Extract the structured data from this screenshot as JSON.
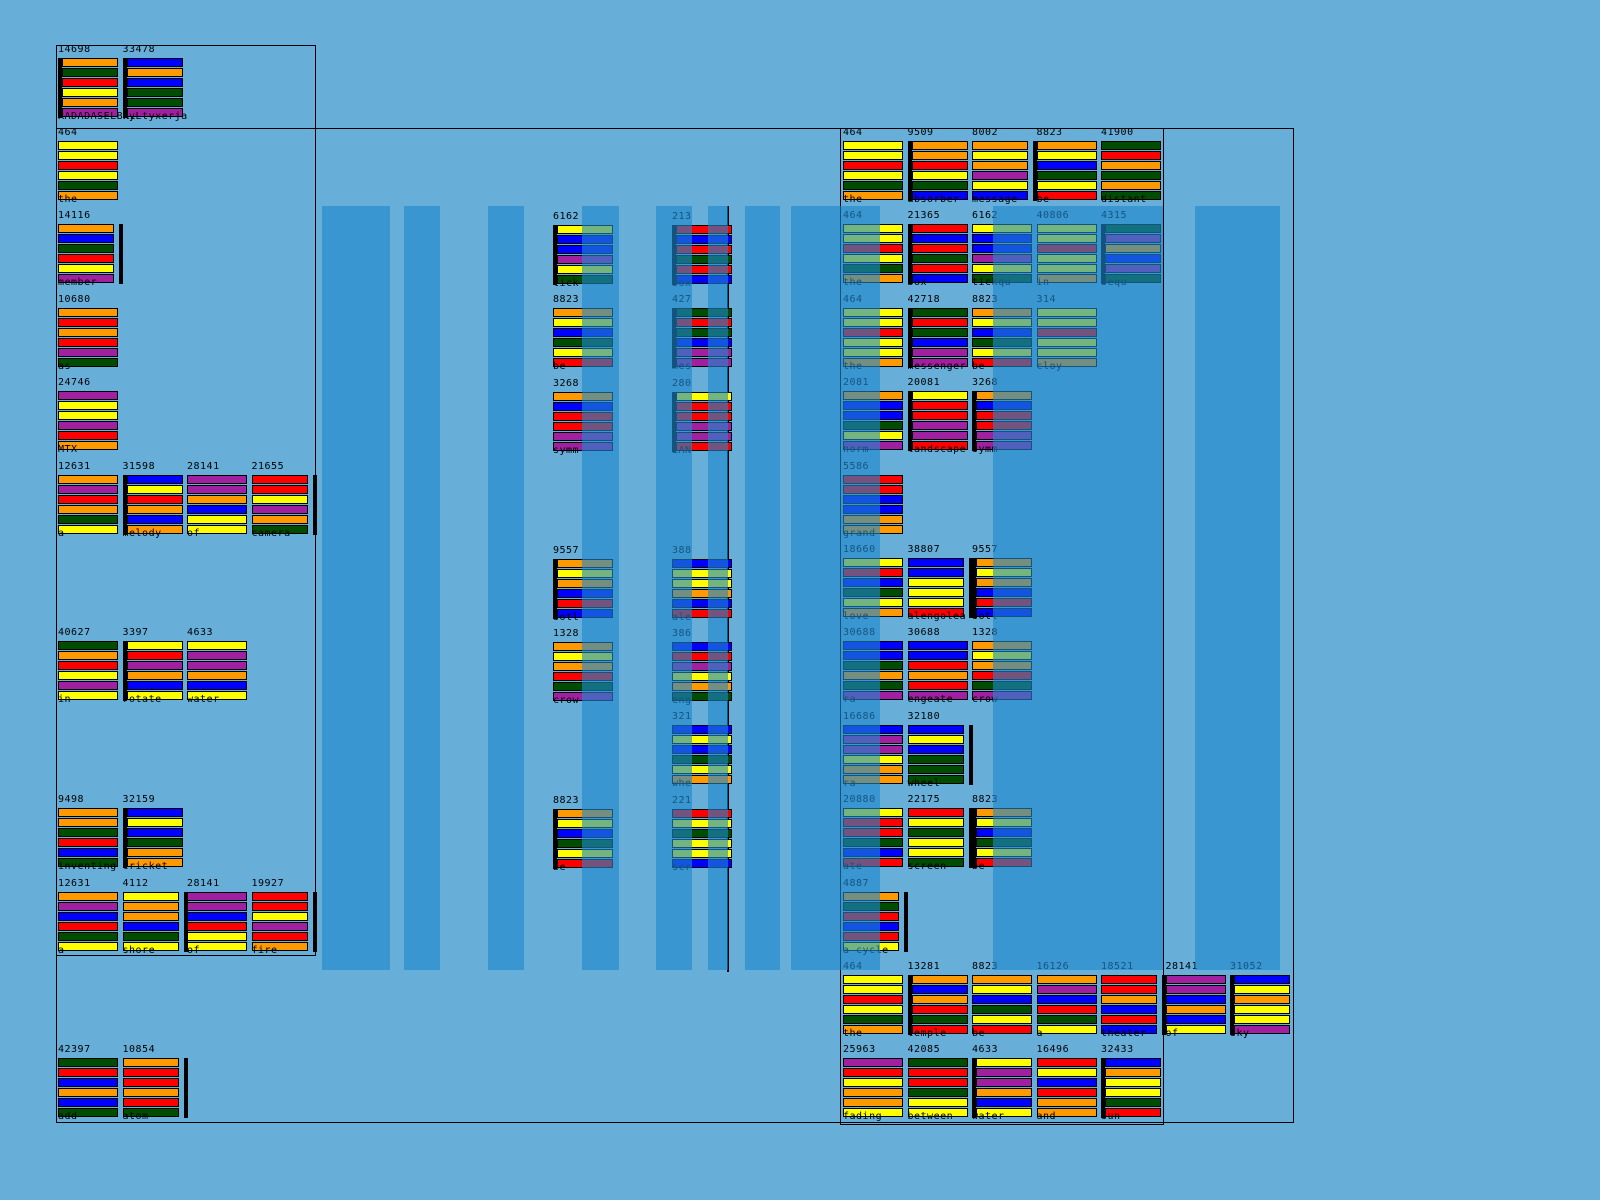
{
  "colors": {
    "o": "#ff9900",
    "g": "#004d00",
    "r": "#ff0000",
    "y": "#ffff00",
    "b": "#0000ff",
    "p": "#a020a0",
    "background": "#67aed8",
    "overlay": "#1e87cd"
  },
  "panels": {
    "header": {
      "rows": [
        [
          {
            "value": "14698",
            "label": "RADADASELBKI",
            "bars": "ogryop",
            "accent": "left"
          },
          {
            "value": "33478",
            "label": "kyLtyxerja",
            "bars": "bobggp",
            "accent": "left"
          }
        ]
      ]
    },
    "left": {
      "rows": [
        [
          {
            "value": "464",
            "label": "the",
            "bars": "yyrygo"
          }
        ],
        [
          {
            "value": "14116",
            "label": "member",
            "bars": "obgryp",
            "accent": "right"
          }
        ],
        [
          {
            "value": "10680",
            "label": "as",
            "bars": "ororpg"
          }
        ],
        [
          {
            "value": "24746",
            "label": "MTX",
            "bars": "pyypro"
          }
        ],
        [
          {
            "value": "12631",
            "label": "a",
            "bars": "oprogy"
          },
          {
            "value": "31598",
            "label": "melody",
            "bars": "byrobo",
            "accent": "left"
          },
          {
            "value": "28141",
            "label": "of",
            "bars": "ppobyy"
          },
          {
            "value": "21655",
            "label": "camera",
            "bars": "rrypog",
            "accent": "right"
          }
        ],
        [],
        [
          {
            "value": "40627",
            "label": "in",
            "bars": "gorypy"
          },
          {
            "value": "3397",
            "label": "rotate",
            "bars": "yrpoby",
            "accent": "left"
          },
          {
            "value": "4633",
            "label": "water",
            "bars": "yppoby"
          }
        ],
        [],
        [
          {
            "value": "9498",
            "label": "inventing",
            "bars": "oogrbg"
          },
          {
            "value": "32159",
            "label": "cricket",
            "bars": "bybgoo",
            "accent": "left"
          }
        ],
        [
          {
            "value": "12631",
            "label": "a",
            "bars": "opbrgy"
          },
          {
            "value": "4112",
            "label": "shore",
            "bars": "yoobgy",
            "accent": "right"
          },
          {
            "value": "28141",
            "label": "of",
            "bars": "ppbryy"
          },
          {
            "value": "19927",
            "label": "fire",
            "bars": "rrypro",
            "accent": "right"
          }
        ]
      ]
    },
    "bottom_left": {
      "rows": [
        [
          {
            "value": "42397",
            "label": "add",
            "bars": "grbobg"
          },
          {
            "value": "10854",
            "label": "atom",
            "bars": "orrorg",
            "accent": "right"
          }
        ]
      ]
    },
    "middle_a": {
      "rows": [
        [
          {
            "value": "6162",
            "label": "tick",
            "bars": "ybbpyg",
            "accent": "left"
          }
        ],
        [
          {
            "value": "8823",
            "label": "be",
            "bars": "oybgyr"
          }
        ],
        [
          {
            "value": "3268",
            "label": "symm",
            "bars": "obrrpp"
          }
        ],
        [],
        [
          {
            "value": "9557",
            "label": "sotl",
            "bars": "oyobrb",
            "accent": "left"
          }
        ],
        [
          {
            "value": "1328",
            "label": "crow",
            "bars": "oyorgp"
          }
        ],
        [],
        [
          {
            "value": "8823",
            "label": "be",
            "bars": "oybgyr",
            "accent": "left"
          }
        ]
      ]
    },
    "middle_b": {
      "rows": [
        [
          {
            "value": "213",
            "label": "box",
            "bars": "rbrgrb",
            "accent": "left"
          }
        ],
        [
          {
            "value": "427",
            "label": "mes",
            "bars": "grgbpp",
            "accent": "left"
          }
        ],
        [
          {
            "value": "280",
            "label": "LAN",
            "bars": "yrrppr",
            "accent": "left"
          }
        ],
        [],
        [
          {
            "value": "388",
            "label": "ale",
            "bars": "byyobr"
          }
        ],
        [
          {
            "value": "386",
            "label": "eng",
            "bars": "brpyog"
          }
        ],
        [
          {
            "value": "321",
            "label": "whe",
            "bars": "bybgyo"
          }
        ],
        [
          {
            "value": "221",
            "label": "scr",
            "bars": "rygyyb"
          }
        ]
      ]
    },
    "right": {
      "rows": [
        [
          {
            "value": "464",
            "label": "the",
            "bars": "yyrygo"
          },
          {
            "value": "9509",
            "label": "absorber",
            "bars": "oorygb",
            "accent": "left"
          },
          {
            "value": "8002",
            "label": "message",
            "bars": "oyopyb",
            "accent": "right"
          },
          {
            "value": "8823",
            "label": "be",
            "bars": "oybgyr"
          },
          {
            "value": "41900",
            "label": "distant",
            "bars": "grogog"
          }
        ],
        [
          {
            "value": "464",
            "label": "the",
            "bars": "yyryg o"
          },
          {
            "value": "21365",
            "label": "box",
            "bars": "rbrgrb",
            "accent": "left"
          },
          {
            "value": "6162",
            "label": "tickqu",
            "bars": "ybbpyg"
          },
          {
            "value": "40806",
            "label": "in",
            "bars": "yyryyo"
          },
          {
            "value": "4315",
            "label": "sequ",
            "bars": "gpobpg",
            "accent": "left"
          }
        ],
        [
          {
            "value": "464",
            "label": "the",
            "bars": "yyryyo"
          },
          {
            "value": "42718",
            "label": "messenger",
            "bars": "grgbpp",
            "accent": "left"
          },
          {
            "value": "8823",
            "label": "be",
            "bars": "oybgyr"
          },
          {
            "value": "314",
            "label": "cloy",
            "bars": "yyryyo"
          }
        ],
        [
          {
            "value": "2081",
            "label": "norm",
            "bars": "obbgyp"
          },
          {
            "value": "20081",
            "label": "landscape",
            "bars": "yrrppr",
            "accent": "left"
          },
          {
            "value": "3268",
            "label": "symm",
            "bars": "obrrpp",
            "accent": "left"
          }
        ],
        [
          {
            "value": "5586",
            "label": "grand",
            "bars": "rrbboo"
          }
        ],
        [
          {
            "value": "18660",
            "label": "love",
            "bars": "yrbgyo"
          },
          {
            "value": "38807",
            "label": "alengolea",
            "bars": "bbyyyr",
            "accent": "right"
          },
          {
            "value": "9557",
            "label": "sotl",
            "bars": "oyobrb",
            "accent": "left"
          }
        ],
        [
          {
            "value": "30688",
            "label": "ra",
            "bars": "bbgogp"
          },
          {
            "value": "30688",
            "label": "engeate",
            "bars": "bbrorp"
          },
          {
            "value": "1328",
            "label": "crow",
            "bars": "oyorgp"
          }
        ],
        [
          {
            "value": "16686",
            "label": "ra",
            "bars": "bppyoo"
          },
          {
            "value": "32180",
            "label": "wheel",
            "bars": "bybggg",
            "accent": "right"
          }
        ],
        [
          {
            "value": "20880",
            "label": "ate",
            "bars": "yrrgbr"
          },
          {
            "value": "22175",
            "label": "screen",
            "bars": "rygyyg",
            "accent": "right"
          },
          {
            "value": "8823",
            "label": "be",
            "bars": "oybgyr",
            "accent": "left"
          }
        ],
        [
          {
            "value": "4887",
            "label": "a cycle",
            "bars": "ogrbry",
            "accent": "right"
          }
        ],
        [
          {
            "value": "464",
            "label": "the",
            "bars": "yyryg o"
          },
          {
            "value": "13281",
            "label": "temple",
            "bars": "oborgr",
            "accent": "left"
          },
          {
            "value": "8823",
            "label": "be",
            "bars": "oybgyr"
          },
          {
            "value": "16126",
            "label": "a",
            "bars": "opbrgy"
          },
          {
            "value": "18521",
            "label": "theater",
            "bars": "rrobrb",
            "accent": "right"
          },
          {
            "value": "28141",
            "label": "of",
            "bars": "ppbobY"
          },
          {
            "value": "31052",
            "label": "sky",
            "bars": "byoyyp",
            "accent": "left"
          }
        ],
        [
          {
            "value": "25963",
            "label": "fading",
            "bars": "pryooy"
          },
          {
            "value": "42085",
            "label": "between",
            "bars": "grrgyy"
          },
          {
            "value": "4633",
            "label": "water",
            "bars": "yppoby",
            "accent": "left"
          },
          {
            "value": "16496",
            "label": "and",
            "bars": "rybroo"
          },
          {
            "value": "32433",
            "label": "sun",
            "bars": "boyygr",
            "accent": "left"
          }
        ]
      ]
    }
  }
}
